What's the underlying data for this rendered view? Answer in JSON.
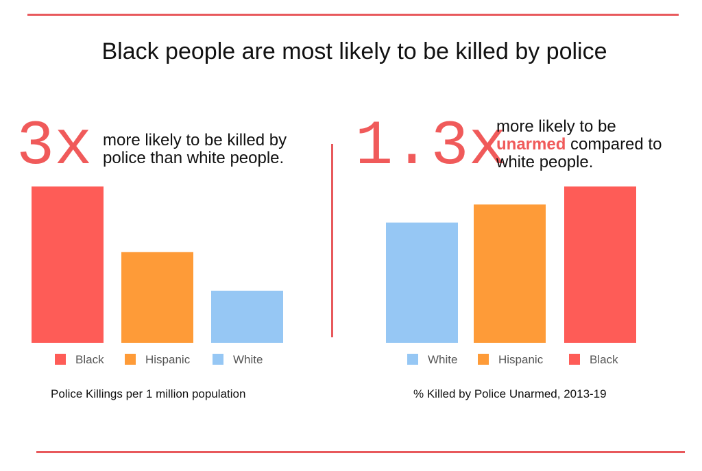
{
  "title": "Black people are most likely to be killed by police",
  "colors": {
    "accent": "#f05a5a",
    "black": "#fe5c57",
    "hispanic": "#fe9b38",
    "white": "#96c7f4",
    "rule": "#e8595c"
  },
  "left": {
    "headline": "3x",
    "note": "more likely to be killed by police than white people."
  },
  "right": {
    "headline": "1.3x",
    "note_pre": "more likely to be",
    "note_highlight": "unarmed",
    "note_post": "compared to white people."
  },
  "chart_data": [
    {
      "type": "bar",
      "title": "Police Killings per 1 million population",
      "categories": [
        "Black",
        "Hispanic",
        "White"
      ],
      "values": [
        3.0,
        1.74,
        1.0
      ],
      "ylim": [
        0,
        3.0
      ],
      "grid": false,
      "legend": "bottom",
      "xlabel": "",
      "ylabel": ""
    },
    {
      "type": "bar",
      "title": "% Killed by Police Unarmed, 2013-19",
      "categories": [
        "White",
        "Hispanic",
        "Black"
      ],
      "values": [
        1.0,
        1.15,
        1.3
      ],
      "ylim": [
        0,
        1.3
      ],
      "grid": false,
      "legend": "bottom",
      "xlabel": "",
      "ylabel": ""
    }
  ]
}
